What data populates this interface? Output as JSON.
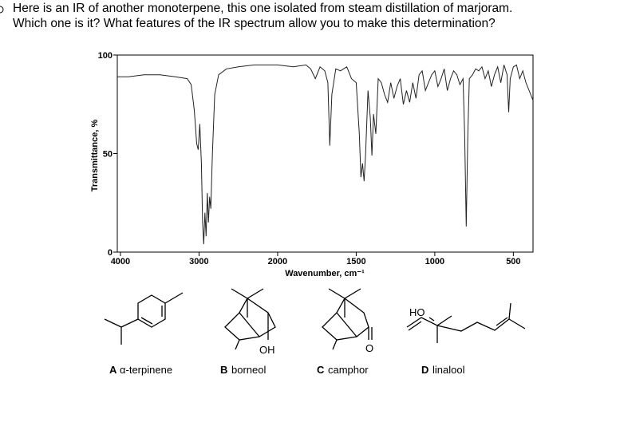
{
  "question": [
    "Here is an IR of another monoterpene, this one isolated from steam distillation of marjoram.",
    "Which one is it? What features of the IR spectrum allow you to make this determination?"
  ],
  "chart_data": {
    "type": "line",
    "y_label": "Transmittance, %",
    "x_label": "Wavenumber, cm⁻¹",
    "xlim": [
      4040,
      375
    ],
    "x_scale_break": 2000,
    "x_scale_ratio_below_break": 2,
    "xticks": [
      4000,
      3000,
      2000,
      1500,
      1000,
      500
    ],
    "ylim": [
      0,
      100
    ],
    "yticks": [
      0,
      50,
      100
    ],
    "color": "#222222",
    "x": [
      4040,
      3900,
      3700,
      3500,
      3300,
      3150,
      3100,
      3060,
      3030,
      3010,
      2990,
      2970,
      2955,
      2940,
      2925,
      2910,
      2895,
      2880,
      2865,
      2850,
      2830,
      2800,
      2750,
      2650,
      2500,
      2300,
      2100,
      2000,
      1900,
      1820,
      1790,
      1760,
      1730,
      1700,
      1680,
      1668,
      1655,
      1630,
      1600,
      1560,
      1530,
      1500,
      1480,
      1470,
      1460,
      1450,
      1440,
      1425,
      1410,
      1400,
      1390,
      1375,
      1360,
      1340,
      1320,
      1300,
      1280,
      1260,
      1240,
      1220,
      1200,
      1180,
      1160,
      1140,
      1120,
      1100,
      1080,
      1060,
      1040,
      1020,
      1000,
      980,
      960,
      940,
      920,
      900,
      880,
      860,
      840,
      820,
      810,
      800,
      790,
      780,
      760,
      740,
      720,
      700,
      680,
      660,
      640,
      620,
      600,
      580,
      560,
      540,
      530,
      520,
      500,
      480,
      460,
      440,
      420,
      400,
      375
    ],
    "values": [
      89,
      89,
      90,
      90,
      89,
      88,
      85,
      72,
      55,
      52,
      65,
      45,
      15,
      4,
      20,
      8,
      30,
      15,
      28,
      22,
      50,
      80,
      90,
      93,
      94,
      95,
      95,
      95,
      94,
      95,
      93,
      88,
      94,
      92,
      86,
      54,
      80,
      93,
      92,
      94,
      88,
      86,
      60,
      38,
      45,
      36,
      50,
      82,
      68,
      49,
      70,
      60,
      88,
      86,
      80,
      76,
      86,
      78,
      84,
      88,
      75,
      82,
      76,
      86,
      78,
      90,
      92,
      82,
      86,
      90,
      92,
      84,
      88,
      93,
      82,
      88,
      92,
      90,
      85,
      88,
      60,
      13,
      60,
      88,
      90,
      93,
      92,
      94,
      88,
      92,
      84,
      90,
      94,
      86,
      95,
      90,
      71,
      88,
      94,
      95,
      88,
      92,
      86,
      82,
      77
    ]
  },
  "compounds": [
    {
      "letter": "A",
      "name": "α-terpinene"
    },
    {
      "letter": "B",
      "name": "borneol",
      "atom": "OH"
    },
    {
      "letter": "C",
      "name": "camphor",
      "atom": "O"
    },
    {
      "letter": "D",
      "name": "linalool",
      "atom": "HO"
    }
  ]
}
